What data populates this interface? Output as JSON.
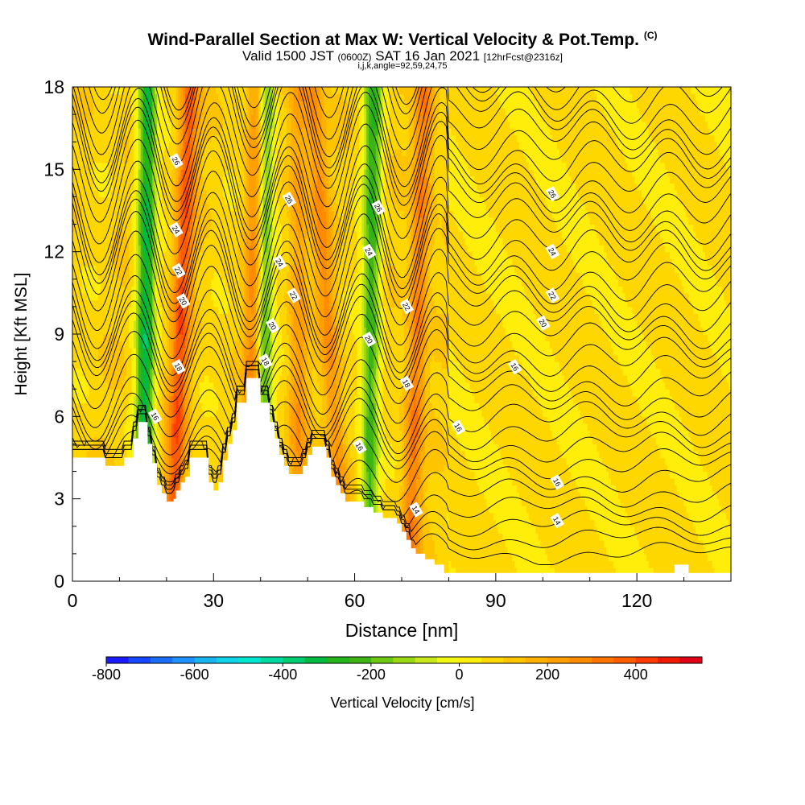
{
  "header": {
    "title": "Wind-Parallel Section at Max W: Vertical Velocity & Pot.Temp.",
    "copyright": "(C)",
    "valid_prefix": "Valid 1500 JST ",
    "valid_utc": "(0600Z)",
    "valid_suffix": " SAT 16 Jan 2021 ",
    "forecast": "[12hrFcst@2316z]",
    "indices": "i,j,k,angle=92,59,24,75"
  },
  "chart_data": {
    "type": "heatmap",
    "title": "Wind-Parallel Section at Max W: Vertical Velocity & Pot.Temp.",
    "xlabel": "Distance [nm]",
    "ylabel": "Height [Kft MSL]",
    "xlim": [
      0,
      140
    ],
    "ylim": [
      0,
      18
    ],
    "x_ticks": [
      "0",
      "30",
      "60",
      "90",
      "120"
    ],
    "x_tick_values": [
      0,
      30,
      60,
      90,
      120
    ],
    "y_ticks": [
      "0",
      "3",
      "6",
      "9",
      "12",
      "15",
      "18"
    ],
    "y_tick_values": [
      0,
      3,
      6,
      9,
      12,
      15,
      18
    ],
    "colorbar": {
      "label": "Vertical Velocity [cm/s]",
      "min": -800,
      "max": 550,
      "step": 50,
      "tick_labels": [
        "-800",
        "-600",
        "-400",
        "-200",
        "0",
        "200",
        "400"
      ],
      "tick_values": [
        -800,
        -600,
        -400,
        -200,
        0,
        200,
        400
      ],
      "colors": [
        "#1a1aff",
        "#1546ff",
        "#1c6df5",
        "#1e90ff",
        "#18b4f0",
        "#10d2e6",
        "#00e6cf",
        "#00d9a0",
        "#00cc70",
        "#00bb40",
        "#22b41a",
        "#3cb414",
        "#6cc812",
        "#9ad814",
        "#c8e81c",
        "#f2f814",
        "#ffee0a",
        "#ffd700",
        "#ffc400",
        "#ffb000",
        "#ff9f00",
        "#ff8c00",
        "#ff7400",
        "#ff5c00",
        "#ff3a00",
        "#f01a00",
        "#e00018",
        "#cc0030",
        "#b80044",
        "#9c0060",
        "#86007c",
        "#6e0090"
      ]
    },
    "vertical_velocity_bands": [
      {
        "x_bottom": 15,
        "x_top": 16,
        "w": -400
      },
      {
        "x_bottom": 21,
        "x_top": 25,
        "w": 300
      },
      {
        "x_bottom": 38,
        "x_top": 39.5,
        "w": 280
      },
      {
        "x_bottom": 40,
        "x_top": 41,
        "w": -350
      },
      {
        "x_bottom": 48,
        "x_top": 48,
        "w": 150
      },
      {
        "x_bottom": 58,
        "x_top": 51,
        "w": 180
      },
      {
        "x_bottom": 63,
        "x_top": 64,
        "w": -320
      },
      {
        "x_bottom": 71.5,
        "x_top": 75,
        "w": 230
      }
    ],
    "terrain": [
      [
        0,
        4.5
      ],
      [
        7,
        4.5
      ],
      [
        7,
        4.2
      ],
      [
        11,
        4.2
      ],
      [
        11,
        4.5
      ],
      [
        13,
        4.5
      ],
      [
        13,
        5.2
      ],
      [
        14,
        5.2
      ],
      [
        14,
        5.8
      ],
      [
        16,
        5.8
      ],
      [
        16,
        5.0
      ],
      [
        17,
        5.0
      ],
      [
        17,
        4.3
      ],
      [
        18,
        4.3
      ],
      [
        18,
        3.5
      ],
      [
        19,
        3.5
      ],
      [
        19,
        3.2
      ],
      [
        20,
        3.2
      ],
      [
        20,
        2.9
      ],
      [
        21.5,
        2.9
      ],
      [
        21.5,
        3.0
      ],
      [
        22,
        3.0
      ],
      [
        22,
        3.3
      ],
      [
        23,
        3.3
      ],
      [
        23,
        3.6
      ],
      [
        24,
        3.6
      ],
      [
        24,
        3.8
      ],
      [
        25,
        3.8
      ],
      [
        25,
        4.5
      ],
      [
        29,
        4.5
      ],
      [
        29,
        3.6
      ],
      [
        30,
        3.6
      ],
      [
        30,
        3.3
      ],
      [
        31,
        3.3
      ],
      [
        31,
        3.6
      ],
      [
        32,
        3.6
      ],
      [
        32,
        4.4
      ],
      [
        33,
        4.4
      ],
      [
        33,
        5.0
      ],
      [
        34,
        5.0
      ],
      [
        34,
        5.5
      ],
      [
        35,
        5.5
      ],
      [
        35,
        6.5
      ],
      [
        37,
        6.5
      ],
      [
        37,
        7.4
      ],
      [
        40,
        7.4
      ],
      [
        40,
        6.5
      ],
      [
        42,
        6.5
      ],
      [
        42,
        5.8
      ],
      [
        43,
        5.8
      ],
      [
        43,
        5.2
      ],
      [
        44,
        5.2
      ],
      [
        44,
        4.6
      ],
      [
        45,
        4.6
      ],
      [
        45,
        4.2
      ],
      [
        46,
        4.2
      ],
      [
        46,
        3.9
      ],
      [
        49,
        3.9
      ],
      [
        49,
        4.2
      ],
      [
        50,
        4.2
      ],
      [
        50,
        4.6
      ],
      [
        51,
        4.6
      ],
      [
        51,
        4.9
      ],
      [
        54,
        4.9
      ],
      [
        54,
        4.5
      ],
      [
        55,
        4.5
      ],
      [
        55,
        3.8
      ],
      [
        56,
        3.8
      ],
      [
        56,
        3.5
      ],
      [
        57,
        3.5
      ],
      [
        57,
        3.2
      ],
      [
        58,
        3.2
      ],
      [
        58,
        2.9
      ],
      [
        62,
        2.9
      ],
      [
        62,
        2.7
      ],
      [
        64,
        2.7
      ],
      [
        64,
        2.5
      ],
      [
        66,
        2.5
      ],
      [
        66,
        2.3
      ],
      [
        69,
        2.3
      ],
      [
        69,
        2.1
      ],
      [
        70,
        2.1
      ],
      [
        70,
        1.8
      ],
      [
        71,
        1.8
      ],
      [
        71,
        1.5
      ],
      [
        72,
        1.5
      ],
      [
        72,
        1.2
      ],
      [
        73,
        1.2
      ],
      [
        73,
        1.0
      ],
      [
        75,
        1.0
      ],
      [
        75,
        0.8
      ],
      [
        77,
        0.8
      ],
      [
        77,
        0.6
      ],
      [
        79,
        0.6
      ],
      [
        79,
        0.3
      ],
      [
        128,
        0.3
      ],
      [
        128,
        0.6
      ],
      [
        131,
        0.6
      ],
      [
        131,
        0.3
      ],
      [
        140,
        0.3
      ],
      [
        140,
        0
      ]
    ],
    "theta_contours": {
      "units": "C",
      "labels": [
        {
          "text": "26",
          "x": 22,
          "y": 15.3
        },
        {
          "text": "26",
          "x": 46,
          "y": 13.9
        },
        {
          "text": "26",
          "x": 65,
          "y": 13.6
        },
        {
          "text": "26",
          "x": 102,
          "y": 14.1
        },
        {
          "text": "24",
          "x": 22,
          "y": 12.8
        },
        {
          "text": "24",
          "x": 44,
          "y": 11.6
        },
        {
          "text": "24",
          "x": 63,
          "y": 12.0
        },
        {
          "text": "24",
          "x": 102,
          "y": 12.0
        },
        {
          "text": "22",
          "x": 22.5,
          "y": 11.3
        },
        {
          "text": "22",
          "x": 47,
          "y": 10.4
        },
        {
          "text": "22",
          "x": 71,
          "y": 10.0
        },
        {
          "text": "22",
          "x": 102,
          "y": 10.4
        },
        {
          "text": "20",
          "x": 23.5,
          "y": 10.2
        },
        {
          "text": "20",
          "x": 42.5,
          "y": 9.3
        },
        {
          "text": "20",
          "x": 63,
          "y": 8.8
        },
        {
          "text": "20",
          "x": 100,
          "y": 9.4
        },
        {
          "text": "18",
          "x": 22.5,
          "y": 7.8
        },
        {
          "text": "18",
          "x": 41,
          "y": 8.0
        },
        {
          "text": "18",
          "x": 71,
          "y": 7.2
        },
        {
          "text": "16",
          "x": 94,
          "y": 7.8
        },
        {
          "text": "16",
          "x": 17.5,
          "y": 6.0
        },
        {
          "text": "16",
          "x": 82,
          "y": 5.6
        },
        {
          "text": "16",
          "x": 61,
          "y": 4.9
        },
        {
          "text": "16",
          "x": 103,
          "y": 3.6
        },
        {
          "text": "14",
          "x": 73,
          "y": 2.6
        },
        {
          "text": "14",
          "x": 103,
          "y": 2.2
        }
      ]
    }
  }
}
